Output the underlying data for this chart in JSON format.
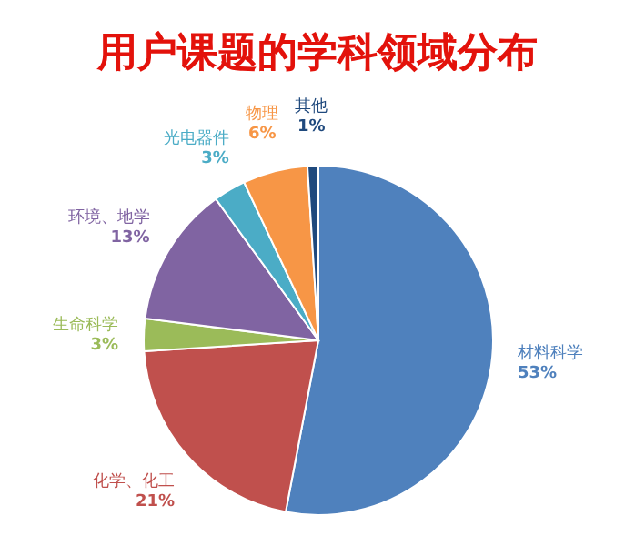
{
  "chart_data": {
    "type": "pie",
    "title": "用户课题的学科领域分布",
    "categories": [
      "材料科学",
      "化学、化工",
      "生命科学",
      "环境、地学",
      "光电器件",
      "物理",
      "其他"
    ],
    "values": [
      53,
      21,
      3,
      13,
      3,
      6,
      1
    ],
    "value_labels": [
      "53%",
      "21%",
      "3%",
      "13%",
      "3%",
      "6%",
      "1%"
    ],
    "colors": [
      "#4f81bd",
      "#c0504d",
      "#9bbb59",
      "#8064a2",
      "#4bacc6",
      "#f79646",
      "#1f497d"
    ]
  }
}
